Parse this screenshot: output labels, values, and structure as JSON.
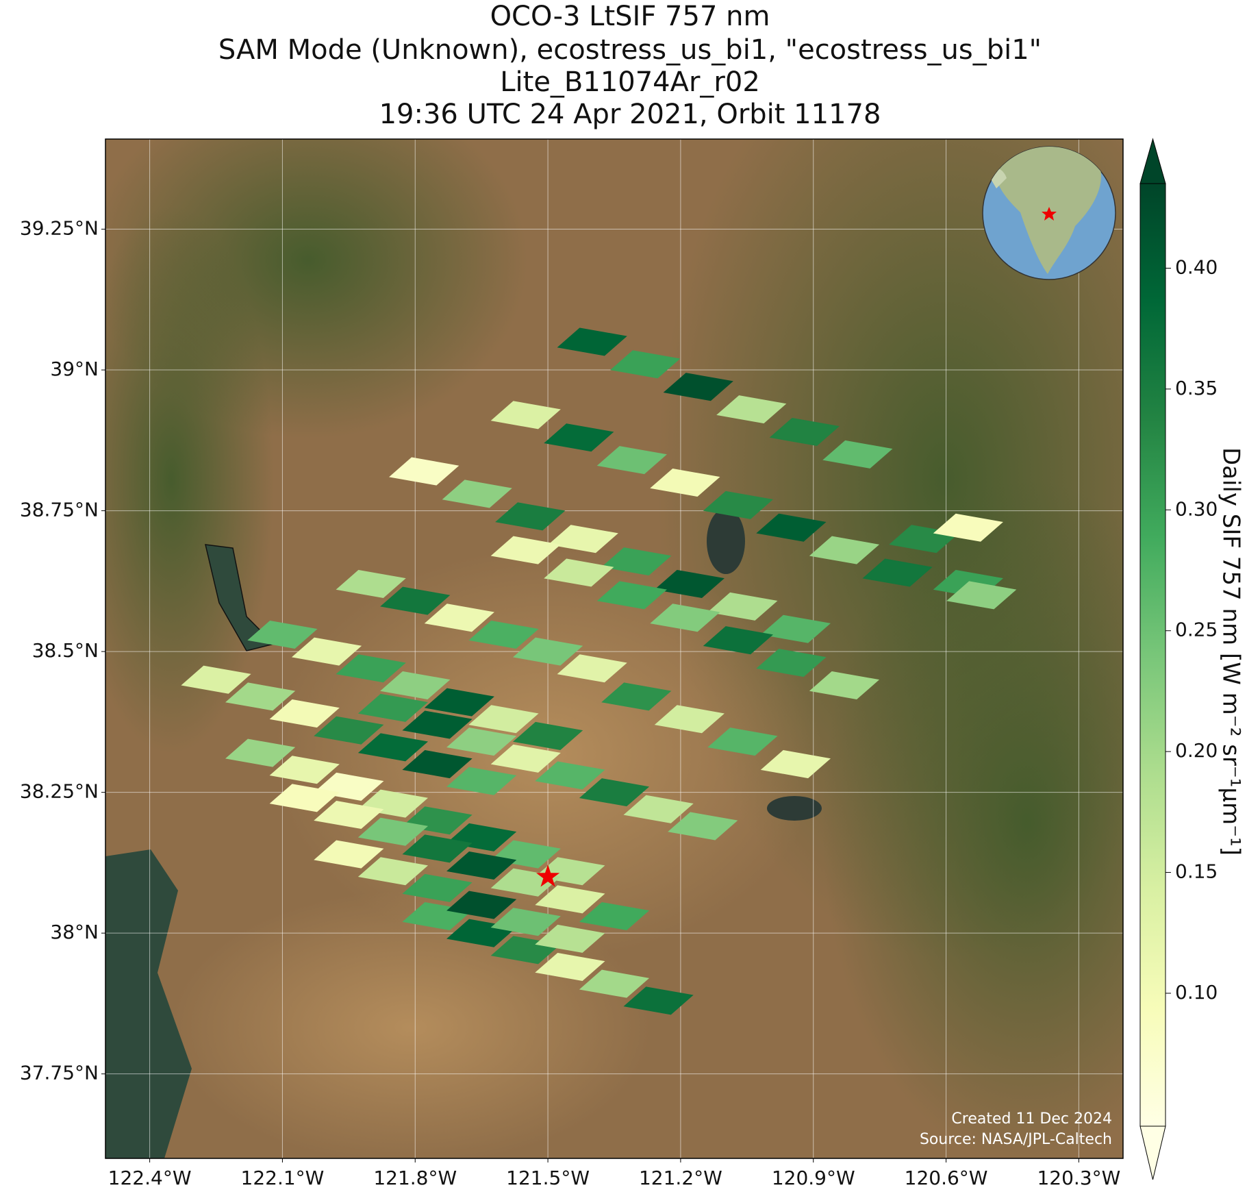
{
  "chart_data": {
    "type": "map",
    "title": [
      "OCO-3 LtSIF 757 nm",
      "SAM Mode (Unknown), ecostress_us_bi1, \"ecostress_us_bi1\"",
      "Lite_B11074Ar_r02",
      "19:36 UTC 24 Apr 2021, Orbit 11178"
    ],
    "colorbar_label": "Daily SIF 757 nm [W m⁻² sr⁻¹μm⁻¹]",
    "credits": [
      "Created 11 Dec 2024",
      "Source: NASA/JPL-Caltech"
    ],
    "colormap": "YlGn",
    "grid": true,
    "xlim": [
      -122.5,
      -120.2
    ],
    "ylim": [
      37.6,
      39.41
    ],
    "clim": [
      0.045,
      0.435
    ],
    "xticks": [
      {
        "value": -122.4,
        "label": "122.4°W"
      },
      {
        "value": -122.1,
        "label": "122.1°W"
      },
      {
        "value": -121.8,
        "label": "121.8°W"
      },
      {
        "value": -121.5,
        "label": "121.5°W"
      },
      {
        "value": -121.2,
        "label": "121.2°W"
      },
      {
        "value": -120.9,
        "label": "120.9°W"
      },
      {
        "value": -120.6,
        "label": "120.6°W"
      },
      {
        "value": -120.3,
        "label": "120.3°W"
      }
    ],
    "yticks": [
      {
        "value": 37.75,
        "label": "37.75°N"
      },
      {
        "value": 38,
        "label": "38°N"
      },
      {
        "value": 38.25,
        "label": "38.25°N"
      },
      {
        "value": 38.5,
        "label": "38.5°N"
      },
      {
        "value": 38.75,
        "label": "38.75°N"
      },
      {
        "value": 39,
        "label": "39°N"
      },
      {
        "value": 39.25,
        "label": "39.25°N"
      }
    ],
    "cticks": [
      {
        "value": 0.1,
        "label": "0.10"
      },
      0.15,
      {
        "value": 0.2,
        "label": "0.20"
      },
      0.25,
      {
        "value": 0.3,
        "label": "0.30"
      },
      0.35,
      {
        "value": 0.4,
        "label": "0.40"
      }
    ],
    "target": {
      "lon": -121.5,
      "lat": 38.1
    },
    "x": [
      -122.15,
      -122.05,
      -121.95,
      -121.85,
      -121.75,
      -121.65,
      -121.55,
      -121.45,
      -122.05,
      -121.95,
      -121.85,
      -121.75,
      -121.65,
      -121.55,
      -121.45,
      -121.35,
      -121.85,
      -121.75,
      -121.65,
      -121.55,
      -121.45,
      -121.35,
      -121.25,
      -121.15,
      -121.75,
      -121.65,
      -121.55,
      -121.45,
      -121.35,
      -121.25,
      -121.95,
      -121.85,
      -121.75,
      -121.65,
      -121.55,
      -121.45,
      -122.25,
      -122.15,
      -122.05,
      -121.95,
      -121.85,
      -121.75,
      -121.65,
      -122.1,
      -122.0,
      -121.9,
      -121.8,
      -121.7,
      -121.6,
      -121.5,
      -121.9,
      -121.8,
      -121.7,
      -121.6,
      -121.5,
      -121.4,
      -121.78,
      -121.66,
      -121.54,
      -121.42,
      -121.3,
      -121.18,
      -121.06,
      -120.94,
      -121.55,
      -121.43,
      -121.31,
      -121.19,
      -121.07,
      -120.95,
      -120.83,
      -120.71,
      -121.4,
      -121.28,
      -121.16,
      -121.04,
      -120.92,
      -120.8,
      -121.55,
      -121.43,
      -121.31,
      -121.19,
      -121.07,
      -120.95,
      -120.83,
      -121.3,
      -121.18,
      -121.06,
      -120.94,
      -120.65,
      -120.55,
      -120.55,
      -120.52
    ],
    "y": [
      38.32,
      38.29,
      38.26,
      38.23,
      38.2,
      38.17,
      38.14,
      38.11,
      38.24,
      38.21,
      38.18,
      38.15,
      38.12,
      38.09,
      38.06,
      38.03,
      38.4,
      38.37,
      38.34,
      38.31,
      38.28,
      38.25,
      38.22,
      38.19,
      38.03,
      38.0,
      37.97,
      37.94,
      37.91,
      37.88,
      38.14,
      38.11,
      38.08,
      38.05,
      38.02,
      37.99,
      38.45,
      38.42,
      38.39,
      38.36,
      38.33,
      38.3,
      38.27,
      38.53,
      38.5,
      38.47,
      38.44,
      38.41,
      38.38,
      38.35,
      38.62,
      38.59,
      38.56,
      38.53,
      38.5,
      38.47,
      38.82,
      38.78,
      38.74,
      38.7,
      38.66,
      38.62,
      38.58,
      38.54,
      38.92,
      38.88,
      38.84,
      38.8,
      38.76,
      38.72,
      38.68,
      38.64,
      39.05,
      39.01,
      38.97,
      38.93,
      38.89,
      38.85,
      38.68,
      38.64,
      38.6,
      38.56,
      38.52,
      38.48,
      38.44,
      38.42,
      38.38,
      38.34,
      38.3,
      38.7,
      38.72,
      38.62,
      38.6
    ],
    "values": [
      0.21,
      0.12,
      0.08,
      0.15,
      0.32,
      0.38,
      0.26,
      0.18,
      0.09,
      0.11,
      0.24,
      0.36,
      0.41,
      0.19,
      0.14,
      0.29,
      0.31,
      0.4,
      0.22,
      0.13,
      0.27,
      0.35,
      0.17,
      0.23,
      0.28,
      0.39,
      0.33,
      0.12,
      0.2,
      0.37,
      0.1,
      0.16,
      0.3,
      0.42,
      0.25,
      0.18,
      0.14,
      0.2,
      0.1,
      0.33,
      0.38,
      0.41,
      0.27,
      0.26,
      0.12,
      0.3,
      0.22,
      0.4,
      0.15,
      0.34,
      0.19,
      0.36,
      0.11,
      0.28,
      0.24,
      0.13,
      0.08,
      0.22,
      0.35,
      0.12,
      0.3,
      0.41,
      0.19,
      0.27,
      0.14,
      0.38,
      0.25,
      0.1,
      0.33,
      0.4,
      0.21,
      0.36,
      0.39,
      0.3,
      0.42,
      0.18,
      0.34,
      0.26,
      0.11,
      0.16,
      0.29,
      0.23,
      0.37,
      0.31,
      0.2,
      0.32,
      0.15,
      0.27,
      0.12,
      0.33,
      0.09,
      0.3,
      0.22
    ]
  }
}
